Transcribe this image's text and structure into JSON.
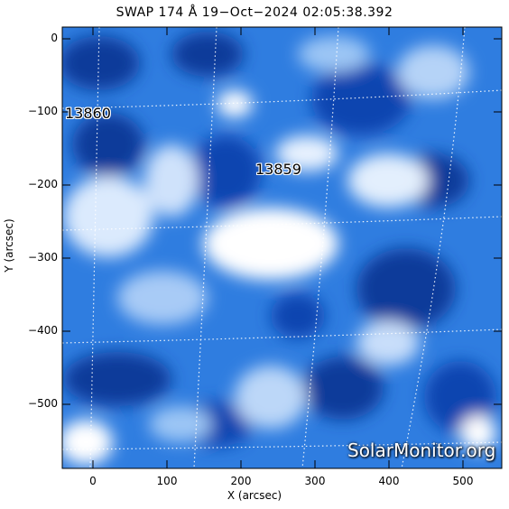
{
  "title": "SWAP 174 Å 19−Oct−2024 02:05:38.392",
  "axes": {
    "xlabel": "X (arcsec)",
    "ylabel": "Y (arcsec)",
    "xticks": [
      "0",
      "100",
      "200",
      "300",
      "400",
      "500"
    ],
    "yticks": [
      "0",
      "−100",
      "−200",
      "−300",
      "−400",
      "−500"
    ],
    "xrange": [
      -40,
      555
    ],
    "yrange": [
      -590,
      30
    ]
  },
  "regions": [
    {
      "label": "13860",
      "x": -38,
      "y": -103
    },
    {
      "label": "13859",
      "x": 220,
      "y": -178
    }
  ],
  "watermark": "SolarMonitor.org",
  "colors": {
    "dark_blue": "#0b3a9a",
    "mid_blue": "#2f7de0",
    "light_blue": "#9cc6f5",
    "white": "#ffffff"
  }
}
